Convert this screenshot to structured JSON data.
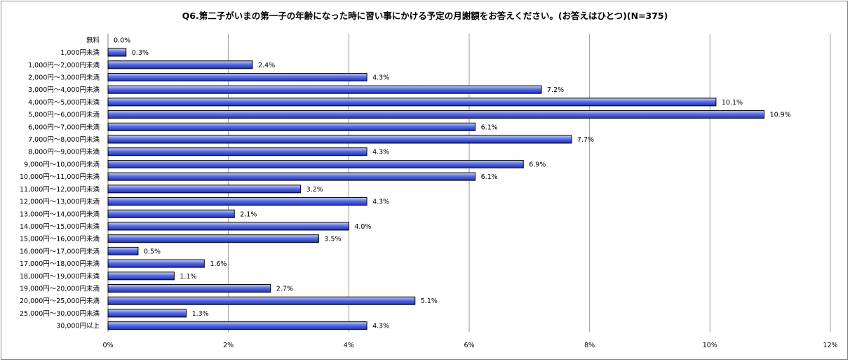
{
  "chart_data": {
    "type": "bar",
    "orientation": "horizontal",
    "title": "Q6.第二子がいまの第一子の年齢になった時に習い事にかける予定の月謝額をお答えください。(お答えはひとつ)(N=375)",
    "xlabel": "",
    "ylabel": "",
    "xlim": [
      0,
      12
    ],
    "x_ticks": [
      "0%",
      "2%",
      "4%",
      "6%",
      "8%",
      "10%",
      "12%"
    ],
    "grid": true,
    "legend": "none",
    "colors": {
      "bar_light": "#c9d3f7",
      "bar_mid": "#5a6fe6",
      "bar_dark": "#1f2fb0",
      "bar_stroke": "#000000",
      "grid": "#9a9a9a"
    },
    "categories": [
      "無料",
      "1,000円未満",
      "1,000円～2,000円未満",
      "2,000円～3,000円未満",
      "3,000円～4,000円未満",
      "4,000円～5,000円未満",
      "5,000円～6,000円未満",
      "6,000円～7,000円未満",
      "7,000円～8,000円未満",
      "8,000円～9,000円未満",
      "9,000円～10,000円未満",
      "10,000円～11,000円未満",
      "11,000円～12,000円未満",
      "12,000円～13,000円未満",
      "13,000円～14,000円未満",
      "14,000円～15,000円未満",
      "15,000円～16,000円未満",
      "16,000円～17,000円未満",
      "17,000円～18,000円未満",
      "18,000円～19,000円未満",
      "19,000円～20,000円未満",
      "20,000円～25,000円未満",
      "25,000円～30,000円未満",
      "30,000円以上"
    ],
    "values": [
      0.0,
      0.3,
      2.4,
      4.3,
      7.2,
      10.1,
      10.9,
      6.1,
      7.7,
      4.3,
      6.9,
      6.1,
      3.2,
      4.3,
      2.1,
      4.0,
      3.5,
      0.5,
      1.6,
      1.1,
      2.7,
      5.1,
      1.3,
      4.3
    ],
    "value_labels": [
      "0.0%",
      "0.3%",
      "2.4%",
      "4.3%",
      "7.2%",
      "10.1%",
      "10.9%",
      "6.1%",
      "7.7%",
      "4.3%",
      "6.9%",
      "6.1%",
      "3.2%",
      "4.3%",
      "2.1%",
      "4.0%",
      "3.5%",
      "0.5%",
      "1.6%",
      "1.1%",
      "2.7%",
      "5.1%",
      "1.3%",
      "4.3%"
    ]
  }
}
